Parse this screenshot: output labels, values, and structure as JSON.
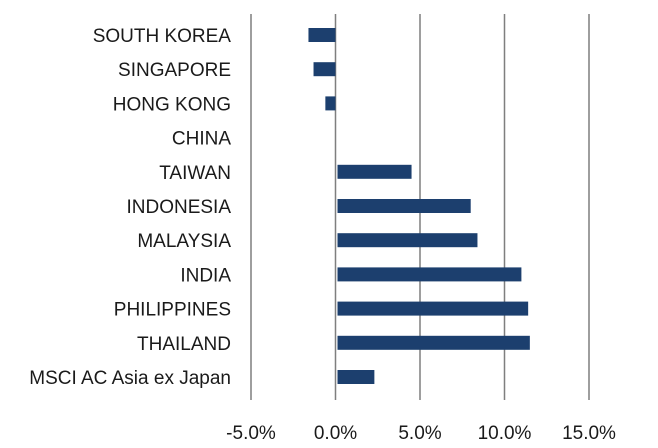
{
  "chart_data": {
    "type": "bar",
    "orientation": "horizontal",
    "title": "",
    "xlabel": "",
    "ylabel": "",
    "categories": [
      "SOUTH KOREA",
      "SINGAPORE",
      "HONG KONG",
      "CHINA",
      "TAIWAN",
      "INDONESIA",
      "MALAYSIA",
      "INDIA",
      "PHILIPPINES",
      "THAILAND",
      "MSCI AC Asia ex Japan"
    ],
    "values": [
      -1.6,
      -1.3,
      -0.6,
      0.0,
      4.5,
      8.0,
      8.4,
      11.0,
      11.4,
      11.5,
      2.3
    ],
    "xlim": [
      -5,
      15
    ],
    "xticks": [
      -5,
      0,
      5,
      10,
      15
    ],
    "xtick_labels": [
      "-5.0%",
      "0.0%",
      "5.0%",
      "10.0%",
      "15.0%"
    ],
    "grid": true,
    "legend": "none",
    "bar_color": "#1c3f6e",
    "grid_color": "#7f7f7f"
  }
}
